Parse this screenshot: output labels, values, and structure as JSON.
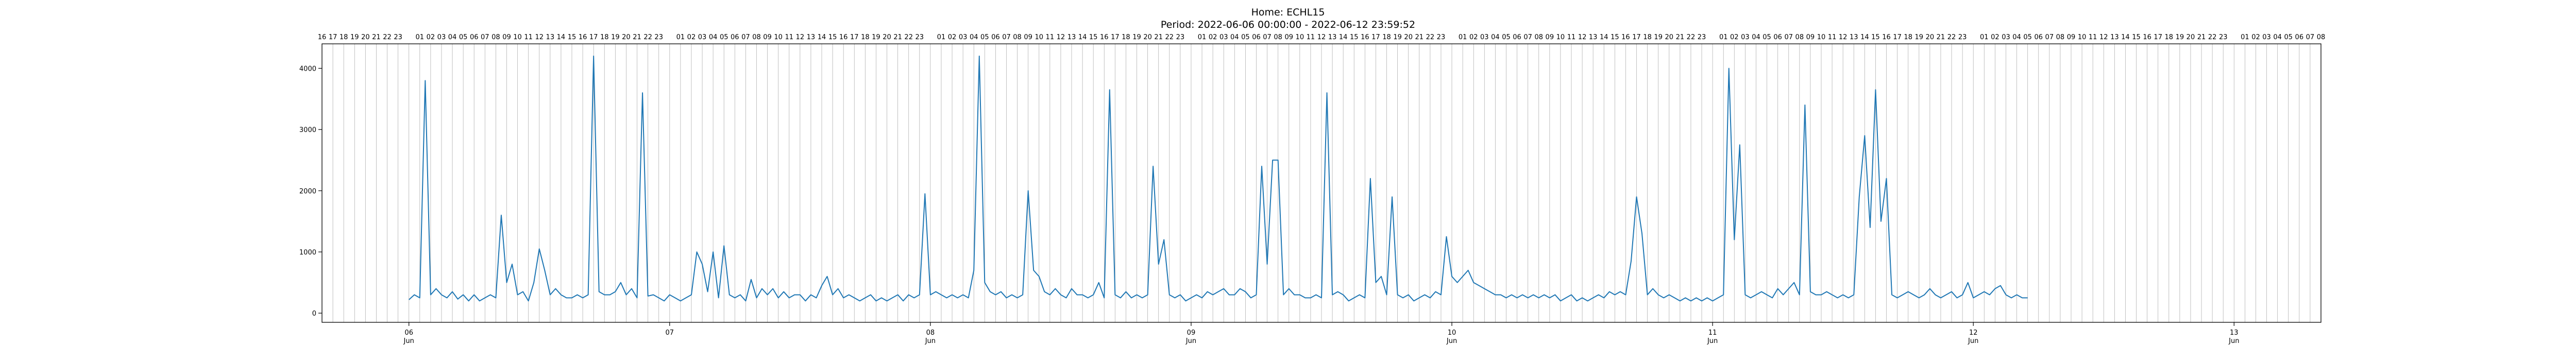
{
  "title": "Home: ECHL15",
  "subtitle": "Period: 2022-06-06 00:00:00 - 2022-06-12 23:59:52",
  "chart_data": {
    "type": "line",
    "x_unit": "hour",
    "x_start": "2022-06-06 00:00",
    "xlim": [
      "2022-06-05 16:00",
      "2022-06-13 08:00"
    ],
    "ylim": [
      -150,
      4400
    ],
    "y_ticks": [
      0,
      1000,
      2000,
      3000,
      4000
    ],
    "date_ticks": [
      {
        "hour": 0,
        "day": "06",
        "month": "Jun"
      },
      {
        "hour": 24,
        "day": "07",
        "month": ""
      },
      {
        "hour": 48,
        "day": "08",
        "month": "Jun"
      },
      {
        "hour": 72,
        "day": "09",
        "month": "Jun"
      },
      {
        "hour": 96,
        "day": "10",
        "month": "Jun"
      },
      {
        "hour": 120,
        "day": "11",
        "month": "Jun"
      },
      {
        "hour": 144,
        "day": "12",
        "month": "Jun"
      },
      {
        "hour": 168,
        "day": "13",
        "month": "Jun"
      }
    ],
    "hour_labels_first": 16,
    "grid": "vertical-hourly",
    "line_color": "#1f77b4",
    "series": [
      {
        "name": "",
        "values": [
          220,
          300,
          250,
          3800,
          300,
          400,
          300,
          250,
          350,
          230,
          300,
          200,
          300,
          200,
          250,
          300,
          250,
          1600,
          500,
          800,
          300,
          350,
          200,
          500,
          1050,
          700,
          300,
          400,
          300,
          250,
          250,
          300,
          250,
          300,
          4200,
          350,
          300,
          300,
          350,
          500,
          300,
          400,
          250,
          3600,
          280,
          300,
          250,
          200,
          300,
          250,
          200,
          250,
          300,
          1000,
          800,
          350,
          1000,
          250,
          1100,
          300,
          250,
          300,
          200,
          550,
          250,
          400,
          300,
          400,
          250,
          350,
          250,
          300,
          300,
          200,
          300,
          250,
          450,
          600,
          300,
          400,
          250,
          300,
          250,
          200,
          250,
          300,
          200,
          250,
          200,
          250,
          300,
          200,
          300,
          250,
          300,
          1950,
          300,
          350,
          300,
          250,
          300,
          250,
          300,
          250,
          700,
          4200,
          500,
          350,
          300,
          350,
          250,
          300,
          250,
          300,
          2000,
          700,
          600,
          350,
          300,
          400,
          300,
          250,
          400,
          300,
          300,
          250,
          300,
          500,
          250,
          3650,
          300,
          250,
          350,
          250,
          300,
          250,
          300,
          2400,
          800,
          1200,
          300,
          250,
          300,
          200,
          250,
          300,
          250,
          350,
          300,
          350,
          400,
          300,
          300,
          400,
          350,
          250,
          300,
          2400,
          800,
          2500,
          2500,
          300,
          400,
          300,
          300,
          250,
          250,
          300,
          250,
          3600,
          300,
          350,
          300,
          200,
          250,
          300,
          250,
          2200,
          500,
          600,
          300,
          1900,
          300,
          250,
          300,
          200,
          250,
          300,
          250,
          350,
          300,
          1250,
          600,
          500,
          600,
          700,
          500,
          450,
          400,
          350,
          300,
          300,
          250,
          300,
          250,
          300,
          250,
          300,
          250,
          300,
          250,
          300,
          200,
          250,
          300,
          200,
          250,
          200,
          250,
          300,
          250,
          350,
          300,
          350,
          300,
          850,
          1900,
          1300,
          300,
          400,
          300,
          250,
          300,
          250,
          200,
          250,
          200,
          250,
          200,
          250,
          200,
          250,
          300,
          4000,
          1200,
          2750,
          300,
          250,
          300,
          350,
          300,
          250,
          400,
          300,
          400,
          500,
          300,
          3400,
          350,
          300,
          300,
          350,
          300,
          250,
          300,
          250,
          300,
          1900,
          2900,
          1400,
          3650,
          1500,
          2200,
          300,
          250,
          300,
          350,
          300,
          250,
          300,
          400,
          300,
          250,
          300,
          350,
          250,
          300,
          500,
          250,
          300,
          350,
          300,
          400,
          450,
          300,
          250,
          300,
          250,
          250
        ]
      }
    ]
  }
}
